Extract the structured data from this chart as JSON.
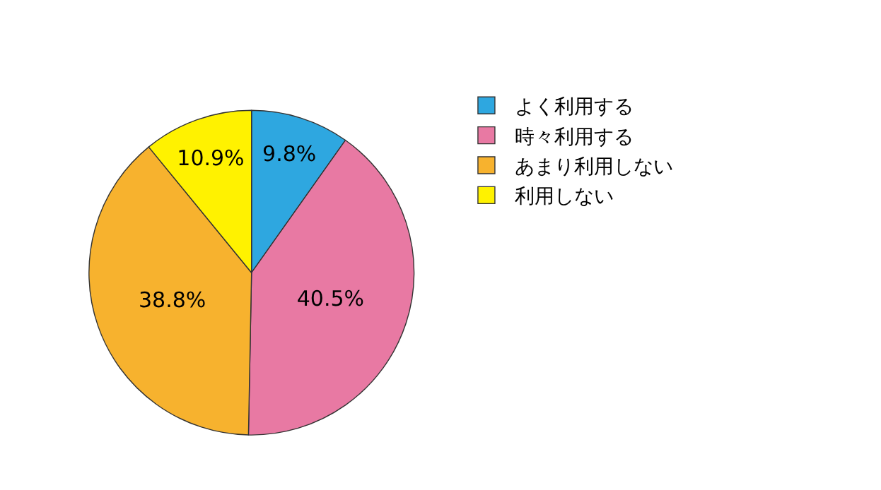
{
  "chart_data": {
    "type": "pie",
    "categories": [
      "よく利用する",
      "時々利用する",
      "あまり利用しない",
      "利用しない"
    ],
    "values": [
      9.8,
      40.5,
      38.8,
      10.9
    ],
    "value_labels": [
      "9.8%",
      "40.5%",
      "38.8%",
      "10.9%"
    ],
    "colors": [
      "#2ea7e0",
      "#e879a3",
      "#f7b22e",
      "#fff200"
    ],
    "legend": "right"
  }
}
